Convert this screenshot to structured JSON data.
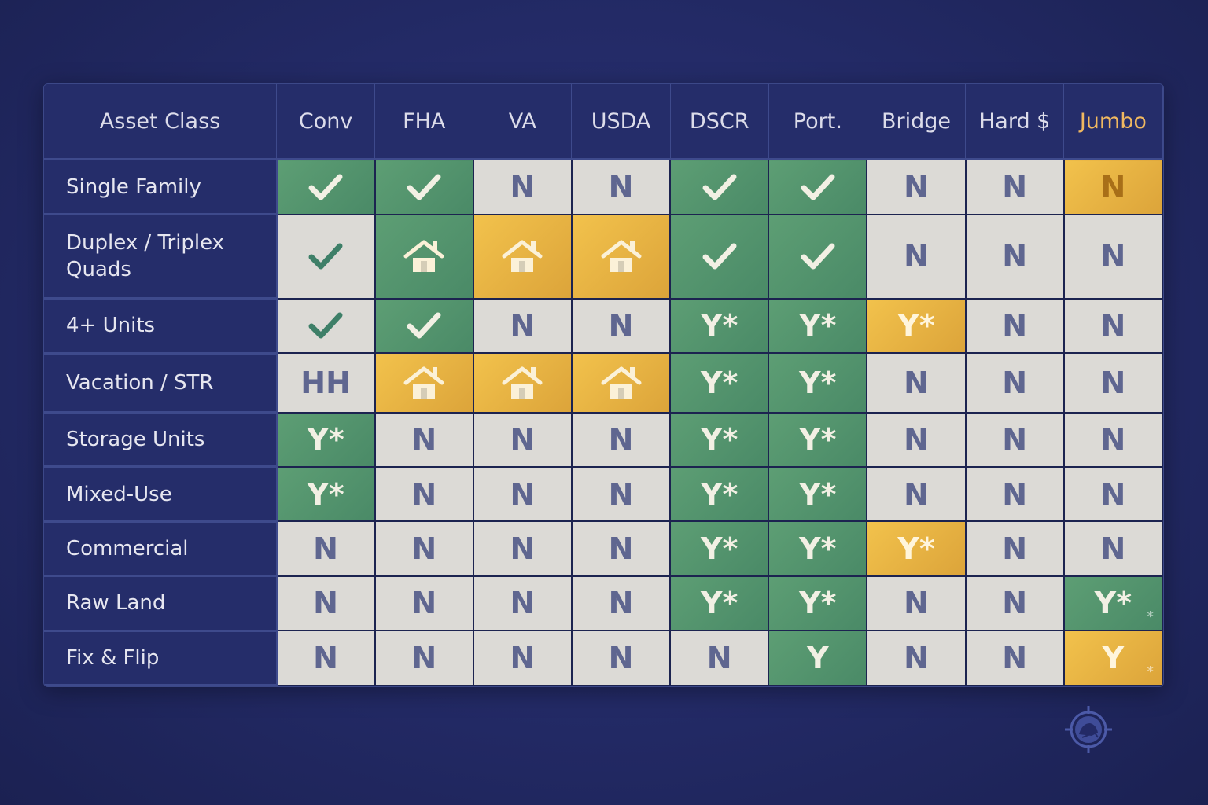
{
  "header": {
    "first": "Asset Class",
    "columns": [
      "Conv",
      "FHA",
      "VA",
      "USDA",
      "DSCR",
      "Port.",
      "Bridge",
      "Hard $",
      "Jumbo"
    ],
    "accent_column": "Jumbo"
  },
  "colors": {
    "background": "#232a66",
    "green": "#5a9a72",
    "gold": "#eab444",
    "grey": "#dcdad6",
    "accent_text": "#f0b860"
  },
  "rows": [
    {
      "label": "Single Family",
      "cells": [
        {
          "v": "check",
          "c": "green"
        },
        {
          "v": "check",
          "c": "green"
        },
        {
          "v": "N",
          "c": "grey"
        },
        {
          "v": "N",
          "c": "grey"
        },
        {
          "v": "check",
          "c": "green"
        },
        {
          "v": "check",
          "c": "green"
        },
        {
          "v": "N",
          "c": "grey"
        },
        {
          "v": "N",
          "c": "grey"
        },
        {
          "v": "N",
          "c": "gold"
        }
      ]
    },
    {
      "label": "Duplex / Triplex Quads",
      "cells": [
        {
          "v": "check",
          "c": "grey"
        },
        {
          "v": "house",
          "c": "green"
        },
        {
          "v": "house",
          "c": "gold"
        },
        {
          "v": "house",
          "c": "gold"
        },
        {
          "v": "check",
          "c": "green"
        },
        {
          "v": "check",
          "c": "green"
        },
        {
          "v": "N",
          "c": "grey"
        },
        {
          "v": "N",
          "c": "grey"
        },
        {
          "v": "N",
          "c": "grey"
        }
      ]
    },
    {
      "label": "4+ Units",
      "cells": [
        {
          "v": "check",
          "c": "grey"
        },
        {
          "v": "check",
          "c": "green"
        },
        {
          "v": "N",
          "c": "grey"
        },
        {
          "v": "N",
          "c": "grey"
        },
        {
          "v": "Y*",
          "c": "green"
        },
        {
          "v": "Y*",
          "c": "green"
        },
        {
          "v": "Y*",
          "c": "gold"
        },
        {
          "v": "N",
          "c": "grey"
        },
        {
          "v": "N",
          "c": "grey"
        }
      ]
    },
    {
      "label": "Vacation / STR",
      "cells": [
        {
          "v": "HH",
          "c": "grey"
        },
        {
          "v": "house",
          "c": "gold"
        },
        {
          "v": "house",
          "c": "gold"
        },
        {
          "v": "house",
          "c": "gold"
        },
        {
          "v": "Y*",
          "c": "green"
        },
        {
          "v": "Y*",
          "c": "green"
        },
        {
          "v": "N",
          "c": "grey"
        },
        {
          "v": "N",
          "c": "grey"
        },
        {
          "v": "N",
          "c": "grey"
        }
      ]
    },
    {
      "label": "Storage Units",
      "cells": [
        {
          "v": "Y*",
          "c": "green"
        },
        {
          "v": "N",
          "c": "grey"
        },
        {
          "v": "N",
          "c": "grey"
        },
        {
          "v": "N",
          "c": "grey"
        },
        {
          "v": "Y*",
          "c": "green"
        },
        {
          "v": "Y*",
          "c": "green"
        },
        {
          "v": "N",
          "c": "grey"
        },
        {
          "v": "N",
          "c": "grey"
        },
        {
          "v": "N",
          "c": "grey"
        }
      ]
    },
    {
      "label": "Mixed-Use",
      "cells": [
        {
          "v": "Y*",
          "c": "green"
        },
        {
          "v": "N",
          "c": "grey"
        },
        {
          "v": "N",
          "c": "grey"
        },
        {
          "v": "N",
          "c": "grey"
        },
        {
          "v": "Y*",
          "c": "green"
        },
        {
          "v": "Y*",
          "c": "green"
        },
        {
          "v": "N",
          "c": "grey"
        },
        {
          "v": "N",
          "c": "grey"
        },
        {
          "v": "N",
          "c": "grey"
        }
      ]
    },
    {
      "label": "Commercial",
      "cells": [
        {
          "v": "N",
          "c": "grey"
        },
        {
          "v": "N",
          "c": "grey"
        },
        {
          "v": "N",
          "c": "grey"
        },
        {
          "v": "N",
          "c": "grey"
        },
        {
          "v": "Y*",
          "c": "green"
        },
        {
          "v": "Y*",
          "c": "green"
        },
        {
          "v": "Y*",
          "c": "gold"
        },
        {
          "v": "N",
          "c": "grey"
        },
        {
          "v": "N",
          "c": "grey"
        }
      ]
    },
    {
      "label": "Raw Land",
      "cells": [
        {
          "v": "N",
          "c": "grey"
        },
        {
          "v": "N",
          "c": "grey"
        },
        {
          "v": "N",
          "c": "grey"
        },
        {
          "v": "N",
          "c": "grey"
        },
        {
          "v": "Y*",
          "c": "green"
        },
        {
          "v": "Y*",
          "c": "green"
        },
        {
          "v": "N",
          "c": "grey"
        },
        {
          "v": "N",
          "c": "grey"
        },
        {
          "v": "Y*",
          "c": "green",
          "star": "*"
        }
      ]
    },
    {
      "label": "Fix & Flip",
      "cells": [
        {
          "v": "N",
          "c": "grey"
        },
        {
          "v": "N",
          "c": "grey"
        },
        {
          "v": "N",
          "c": "grey"
        },
        {
          "v": "N",
          "c": "grey"
        },
        {
          "v": "N",
          "c": "grey"
        },
        {
          "v": "Y",
          "c": "green"
        },
        {
          "v": "N",
          "c": "grey"
        },
        {
          "v": "N",
          "c": "grey"
        },
        {
          "v": "Y",
          "c": "gold",
          "star": "*"
        }
      ]
    }
  ],
  "logo": {
    "icon": "crosshair-mountain-logo-icon"
  }
}
